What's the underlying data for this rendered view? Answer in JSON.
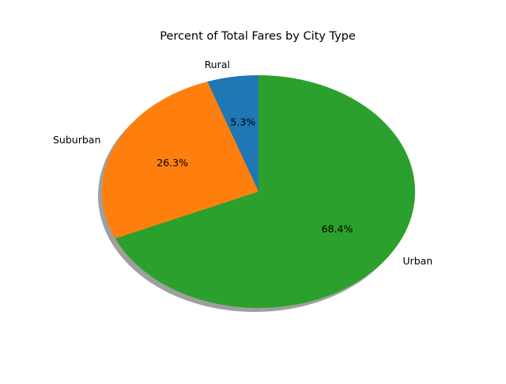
{
  "chart_data": {
    "type": "pie",
    "title": "Percent of Total Fares by City Type",
    "start_angle_deg": 90,
    "direction": "counterclockwise",
    "shadow": true,
    "slices": [
      {
        "label": "Rural",
        "value": 5.3,
        "pct_label": "5.3%",
        "color": "#1f77b4"
      },
      {
        "label": "Suburban",
        "value": 26.3,
        "pct_label": "26.3%",
        "color": "#ff7f0e"
      },
      {
        "label": "Urban",
        "value": 68.4,
        "pct_label": "68.4%",
        "color": "#2ca02c"
      }
    ]
  }
}
